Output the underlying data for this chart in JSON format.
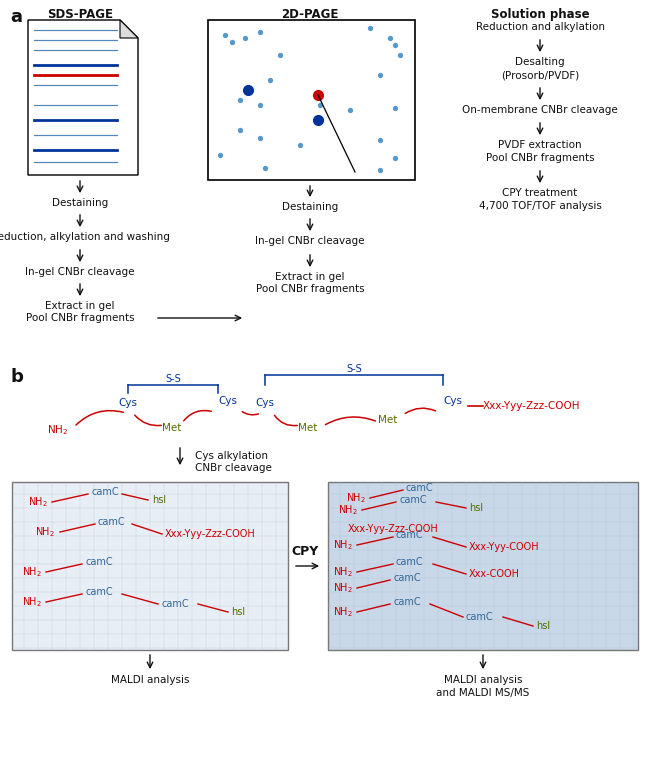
{
  "colors": {
    "red": "#cc0000",
    "blue": "#336699",
    "dark_blue": "#003399",
    "green": "#556b00",
    "black": "#111111",
    "box_bg_light": "#e8eef5",
    "box_bg_dark": "#c8d8e8",
    "grid_line": "#aabccc"
  },
  "panel_a": {
    "title_sds": "SDS-PAGE",
    "title_2d": "2D-PAGE",
    "title_sol": "Solution phase"
  },
  "panel_b": {
    "left_box_label": "MALDI analysis",
    "right_box_label1": "MALDI analysis",
    "right_box_label2": "and MALDI MS/MS",
    "cpy_label": "CPY"
  }
}
